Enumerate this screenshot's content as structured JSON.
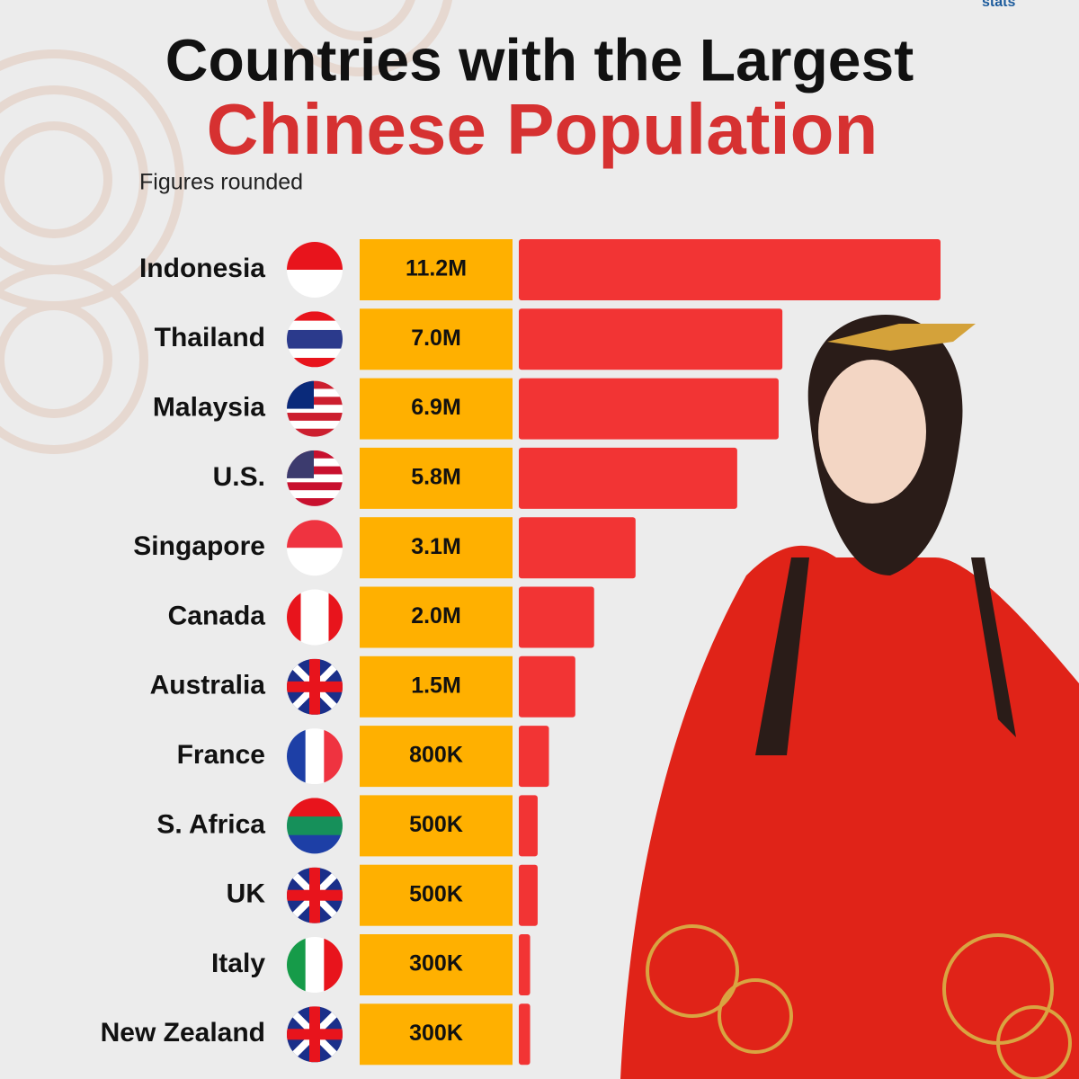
{
  "chart_data": {
    "type": "bar",
    "title": "Countries with the Largest",
    "title_highlight": "Chinese Population",
    "subtitle": "Figures rounded",
    "logo": "stats",
    "categories": [
      "Indonesia",
      "Thailand",
      "Malaysia",
      "U.S.",
      "Singapore",
      "Canada",
      "Australia",
      "France",
      "S. Africa",
      "UK",
      "Italy",
      "New Zealand"
    ],
    "values": [
      11200000,
      7000000,
      6900000,
      5800000,
      3100000,
      2000000,
      1500000,
      800000,
      500000,
      500000,
      300000,
      300000
    ],
    "value_labels": [
      "11.2M",
      "7.0M",
      "6.9M",
      "5.8M",
      "3.1M",
      "2.0M",
      "1.5M",
      "800K",
      "500K",
      "500K",
      "300K",
      "300K"
    ],
    "color": "#f23434",
    "label_box_color": "#ffb000"
  }
}
